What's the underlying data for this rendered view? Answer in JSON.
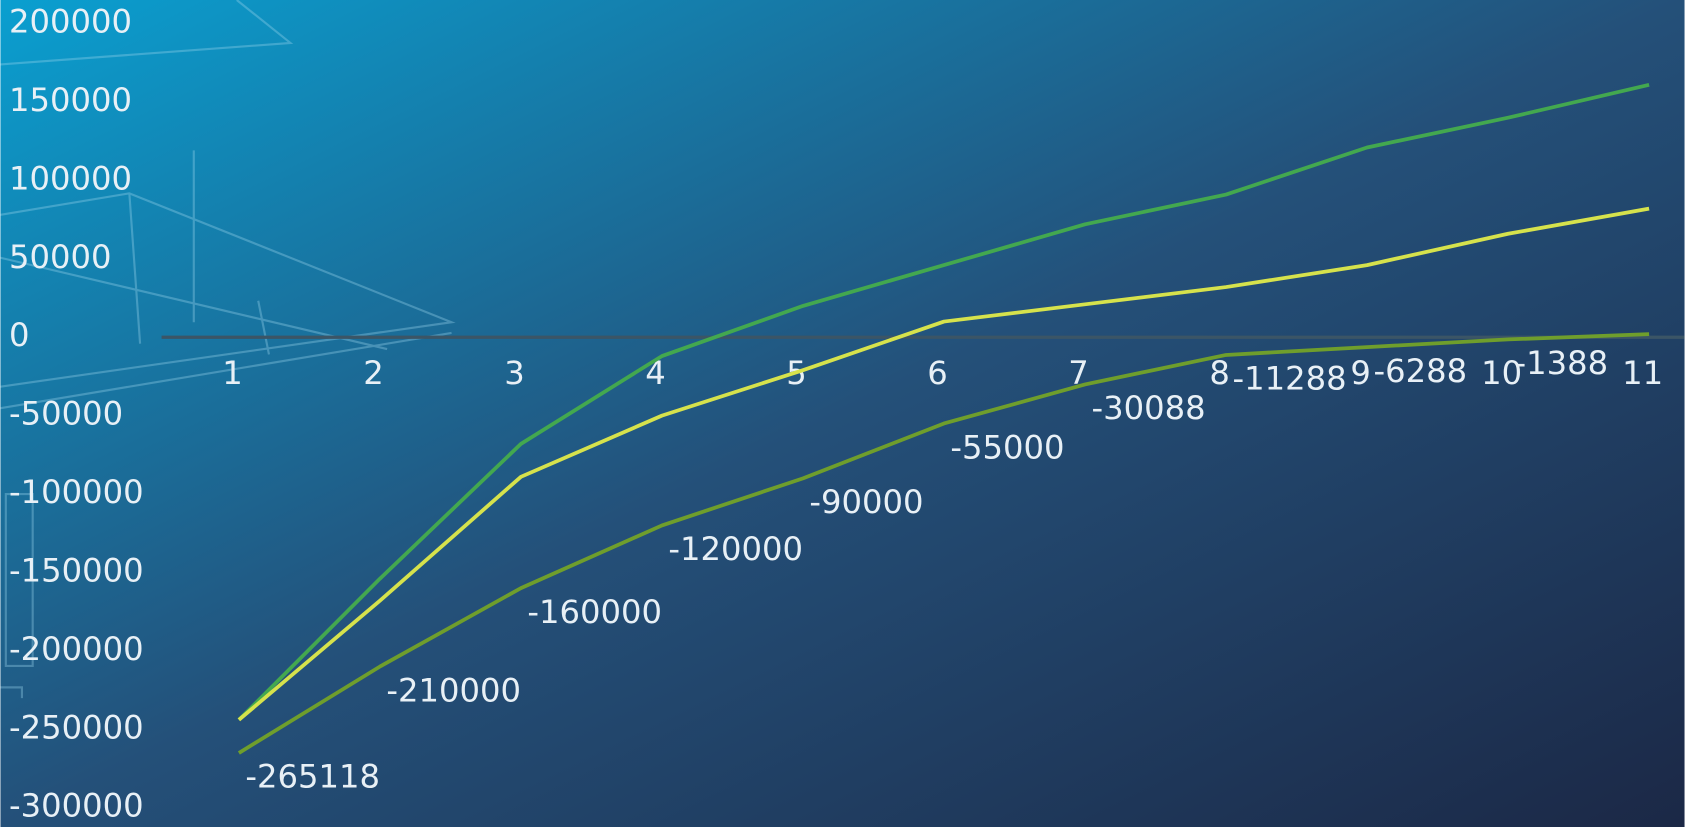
{
  "chart_data": {
    "type": "line",
    "categories": [
      "1",
      "2",
      "3",
      "4",
      "5",
      "6",
      "7",
      "8",
      "9",
      "10",
      "11"
    ],
    "series": [
      {
        "color": "#43a84f",
        "values": [
          -244000,
          -154000,
          -68000,
          -12000,
          20000,
          46000,
          72000,
          91000,
          121000,
          140000,
          161000
        ]
      },
      {
        "color": "#d6e24c",
        "values": [
          -244000,
          -168000,
          -89000,
          -50000,
          -21000,
          10000,
          21000,
          32000,
          46000,
          66000,
          82000
        ]
      },
      {
        "color": "#6f9e2c",
        "values": [
          -265118,
          -210000,
          -160000,
          -120000,
          -90000,
          -55000,
          -30088,
          -11288,
          -6288,
          -1388,
          2000
        ],
        "value_labels": [
          "-265118",
          "-210000",
          "-160000",
          "-120000",
          "-90000",
          "-55000",
          "-30088",
          "-11288",
          "-6288",
          "-1388",
          null
        ]
      }
    ],
    "ylim": [
      -300000,
      200000
    ],
    "yticks": [
      -300000,
      -250000,
      -200000,
      -150000,
      -100000,
      -50000,
      0,
      50000,
      100000,
      150000,
      200000
    ]
  }
}
